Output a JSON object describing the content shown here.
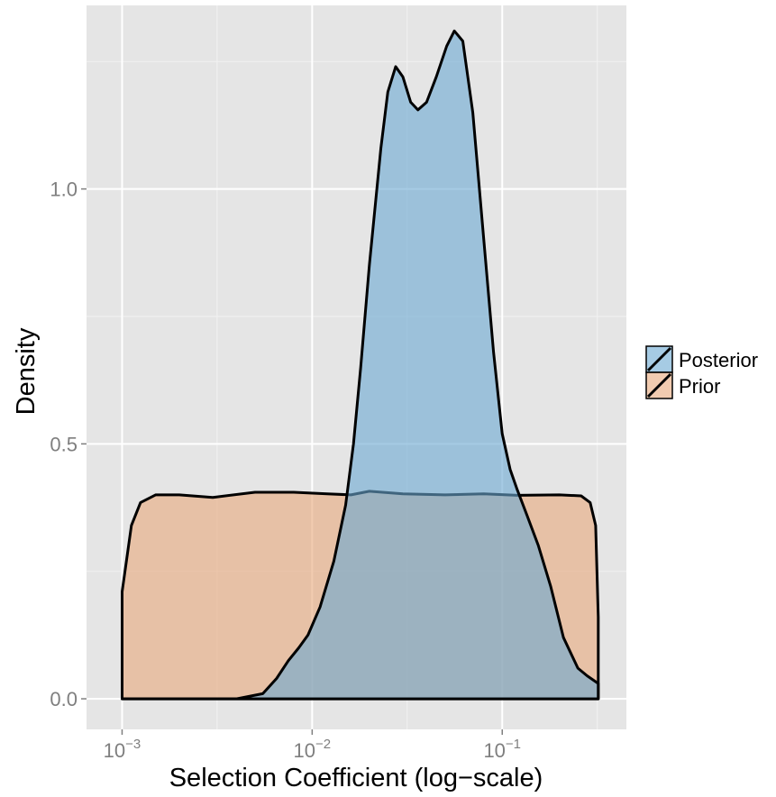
{
  "chart_data": {
    "type": "area",
    "xlabel": "Selection Coefficient (log−scale)",
    "ylabel": "Density",
    "x_scale": "log10",
    "xlim": [
      0.00065,
      0.45
    ],
    "ylim": [
      -0.06,
      1.36
    ],
    "x_ticks": [
      {
        "value": 0.001,
        "base": "10",
        "exp": "−3"
      },
      {
        "value": 0.01,
        "base": "10",
        "exp": "−2"
      },
      {
        "value": 0.1,
        "base": "10",
        "exp": "−1"
      }
    ],
    "y_ticks": [
      {
        "value": 0.0,
        "label": "0.0"
      },
      {
        "value": 0.5,
        "label": "0.5"
      },
      {
        "value": 1.0,
        "label": "1.0"
      }
    ],
    "grid": true,
    "legend_position": "right",
    "series": [
      {
        "name": "Prior",
        "color": "#E8A87C",
        "points": [
          [
            0.001,
            0.0
          ],
          [
            0.001,
            0.21
          ],
          [
            0.00112,
            0.34
          ],
          [
            0.00125,
            0.385
          ],
          [
            0.0015,
            0.4
          ],
          [
            0.002,
            0.4
          ],
          [
            0.003,
            0.395
          ],
          [
            0.005,
            0.405
          ],
          [
            0.008,
            0.405
          ],
          [
            0.012,
            0.402
          ],
          [
            0.016,
            0.4
          ],
          [
            0.02,
            0.407
          ],
          [
            0.03,
            0.402
          ],
          [
            0.05,
            0.4
          ],
          [
            0.08,
            0.402
          ],
          [
            0.12,
            0.399
          ],
          [
            0.2,
            0.4
          ],
          [
            0.26,
            0.398
          ],
          [
            0.29,
            0.385
          ],
          [
            0.31,
            0.34
          ],
          [
            0.32,
            0.16
          ],
          [
            0.32,
            0.0
          ]
        ]
      },
      {
        "name": "Posterior",
        "color": "#6AA8D2",
        "points": [
          [
            0.001,
            0.0
          ],
          [
            0.004,
            0.0
          ],
          [
            0.0055,
            0.01
          ],
          [
            0.0065,
            0.04
          ],
          [
            0.0075,
            0.075
          ],
          [
            0.0085,
            0.1
          ],
          [
            0.0095,
            0.125
          ],
          [
            0.011,
            0.18
          ],
          [
            0.013,
            0.27
          ],
          [
            0.015,
            0.38
          ],
          [
            0.0165,
            0.5
          ],
          [
            0.018,
            0.65
          ],
          [
            0.02,
            0.85
          ],
          [
            0.023,
            1.08
          ],
          [
            0.025,
            1.19
          ],
          [
            0.0275,
            1.24
          ],
          [
            0.03,
            1.22
          ],
          [
            0.033,
            1.17
          ],
          [
            0.036,
            1.155
          ],
          [
            0.04,
            1.17
          ],
          [
            0.045,
            1.22
          ],
          [
            0.051,
            1.28
          ],
          [
            0.056,
            1.31
          ],
          [
            0.062,
            1.29
          ],
          [
            0.07,
            1.15
          ],
          [
            0.08,
            0.9
          ],
          [
            0.09,
            0.68
          ],
          [
            0.1,
            0.52
          ],
          [
            0.11,
            0.45
          ],
          [
            0.12,
            0.41
          ],
          [
            0.135,
            0.36
          ],
          [
            0.155,
            0.3
          ],
          [
            0.18,
            0.22
          ],
          [
            0.21,
            0.12
          ],
          [
            0.25,
            0.06
          ],
          [
            0.28,
            0.045
          ],
          [
            0.32,
            0.03
          ],
          [
            0.32,
            0.0
          ]
        ]
      }
    ]
  }
}
